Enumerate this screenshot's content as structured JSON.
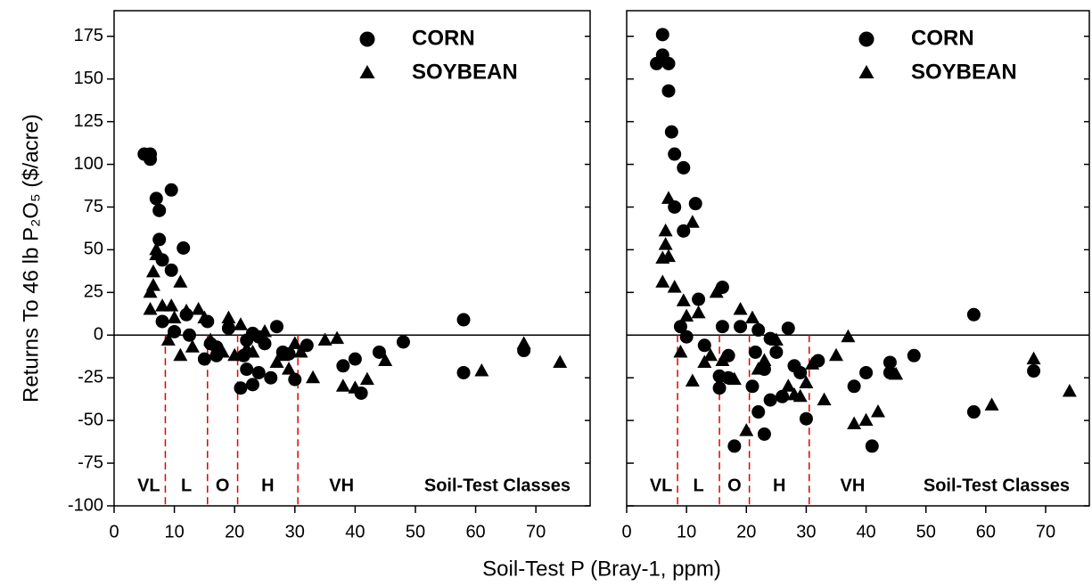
{
  "chart_data": [
    {
      "type": "scatter",
      "xlabel": "Soil-Test P (Bray-1, ppm)",
      "ylabel": "Returns To 46 lb P₂O₅ ($/acre)",
      "xlim": [
        0,
        79
      ],
      "ylim": [
        -100,
        190
      ],
      "xticks": [
        0,
        10,
        20,
        30,
        40,
        50,
        60,
        70
      ],
      "yticks": [
        -100,
        -75,
        -50,
        -25,
        0,
        25,
        50,
        75,
        100,
        125,
        150,
        175
      ],
      "legend": "upper right",
      "class_boundaries": [
        8.5,
        15.5,
        20.5,
        30.5
      ],
      "class_labels": [
        "VL",
        "L",
        "O",
        "H",
        "VH"
      ],
      "class_title": "Soil-Test Classes",
      "series": [
        {
          "name": "CORN",
          "marker": "circle",
          "color": "#000000",
          "x": [
            5,
            6,
            6,
            7,
            7.5,
            7.5,
            8,
            8,
            9.5,
            9.5,
            10,
            11.5,
            12,
            12.5,
            15,
            15.5,
            16,
            17,
            17,
            19,
            21,
            21.5,
            22,
            22,
            23,
            23,
            24,
            24,
            25,
            26,
            27,
            28,
            29,
            30,
            32,
            38,
            40,
            41,
            44,
            48,
            58,
            58,
            68
          ],
          "values": [
            106,
            106,
            103,
            80,
            73,
            56,
            44,
            8,
            85,
            38,
            2,
            51,
            12,
            0,
            -14,
            8,
            -5,
            -7,
            -12,
            4,
            -31,
            -12,
            -3,
            -20,
            -29,
            1,
            -1,
            -22,
            -5,
            -25,
            5,
            -10,
            -11,
            -26,
            -6,
            -18,
            -14,
            -34,
            -10,
            -4,
            9,
            -22,
            -9
          ]
        },
        {
          "name": "SOYBEAN",
          "marker": "triangle",
          "color": "#000000",
          "x": [
            6,
            6,
            6.5,
            6.5,
            7,
            7,
            8,
            9,
            9.5,
            10,
            11,
            11,
            12,
            13,
            14,
            15,
            16,
            18,
            19,
            20,
            21,
            22,
            23,
            25,
            27,
            28,
            29,
            30,
            31,
            33,
            35,
            37,
            38,
            40,
            42,
            45,
            61,
            68,
            74
          ],
          "values": [
            15,
            25,
            29,
            37,
            47,
            50,
            17,
            -3,
            17,
            10,
            -12,
            31,
            14,
            -7,
            15,
            10,
            -3,
            -10,
            10,
            -12,
            6,
            -8,
            -10,
            2,
            -16,
            -12,
            -20,
            -5,
            -10,
            -25,
            -3,
            -2,
            -30,
            -31,
            -26,
            -15,
            -21,
            -5,
            -16
          ]
        }
      ]
    },
    {
      "type": "scatter",
      "xlim": [
        0,
        77.3
      ],
      "ylim": [
        -100,
        190
      ],
      "xticks": [
        0,
        10,
        20,
        30,
        40,
        50,
        60,
        70
      ],
      "legend": "upper right",
      "class_boundaries": [
        8.5,
        15.5,
        20.5,
        30.5
      ],
      "class_labels": [
        "VL",
        "L",
        "O",
        "H",
        "VH"
      ],
      "class_title": "Soil-Test Classes",
      "series": [
        {
          "name": "CORN",
          "marker": "circle",
          "color": "#000000",
          "x": [
            5,
            6,
            6,
            7,
            7,
            7.5,
            8,
            8,
            9,
            9.5,
            9.5,
            10,
            11.5,
            12,
            13,
            15.5,
            15.5,
            16,
            16,
            17,
            17,
            18,
            19,
            21,
            21.5,
            22,
            22,
            23,
            23,
            24,
            24,
            25,
            26,
            27,
            28,
            29,
            30,
            32,
            38,
            40,
            41,
            44,
            44,
            48,
            58,
            58,
            68
          ],
          "values": [
            159,
            176,
            164,
            159,
            143,
            119,
            106,
            75,
            5,
            98,
            61,
            -1,
            77,
            21,
            -6,
            -24,
            -31,
            28,
            5,
            -12,
            -25,
            -65,
            5,
            -30,
            -10,
            3,
            -45,
            -20,
            -58,
            -2,
            -38,
            -10,
            -36,
            4,
            -18,
            -22,
            -49,
            -15,
            -30,
            -22,
            -65,
            -22,
            -16,
            -12,
            12,
            -45,
            -21
          ]
        },
        {
          "name": "SOYBEAN",
          "marker": "triangle",
          "color": "#000000",
          "x": [
            6,
            6,
            6.5,
            6.5,
            7,
            7,
            8,
            9,
            9.5,
            10,
            11,
            11,
            12,
            13,
            14,
            15,
            16,
            18,
            19,
            20,
            21,
            22,
            23,
            25,
            27,
            28,
            29,
            30,
            31,
            33,
            35,
            37,
            38,
            40,
            42,
            45,
            61,
            68,
            74
          ],
          "values": [
            31,
            45,
            53,
            61,
            80,
            46,
            28,
            -10,
            20,
            11,
            -27,
            66,
            13,
            -16,
            -12,
            25,
            -15,
            -26,
            15,
            -56,
            10,
            -20,
            -15,
            -3,
            -30,
            -35,
            -36,
            -28,
            -17,
            -38,
            -12,
            -1,
            -52,
            -50,
            -45,
            -23,
            -41,
            -14,
            -33
          ]
        }
      ]
    }
  ]
}
